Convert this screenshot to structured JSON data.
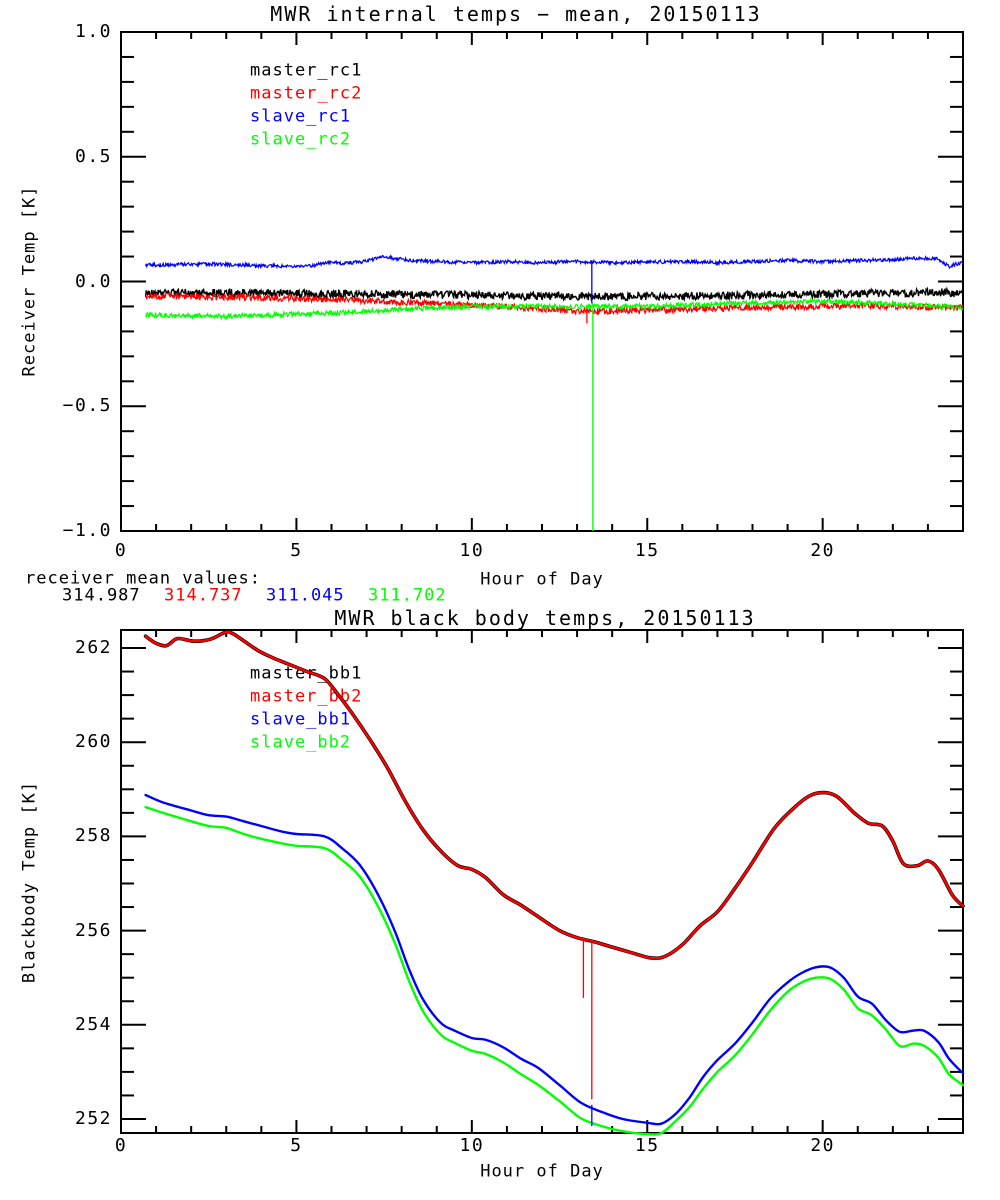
{
  "page": {
    "background": "#ffffff"
  },
  "colors": {
    "black": "#000000",
    "red": "#ff0000",
    "blue": "#0000ff",
    "green": "#00ff00"
  },
  "annotations": {
    "receiver_mean_label": "receiver mean values:",
    "receiver_means": [
      {
        "value": "314.987",
        "color": "black"
      },
      {
        "value": "314.737",
        "color": "red"
      },
      {
        "value": "311.045",
        "color": "blue"
      },
      {
        "value": "311.702",
        "color": "green"
      }
    ]
  },
  "chart_data": [
    {
      "type": "line",
      "title": "MWR internal temps − mean, 20150113",
      "xlabel": "Hour of Day",
      "ylabel": "Receiver Temp [K]",
      "xlim": [
        0,
        24
      ],
      "ylim": [
        -1.0,
        1.0
      ],
      "x_major_ticks": [
        0,
        5,
        10,
        15,
        20
      ],
      "x_tick_labels": [
        "0",
        "5",
        "10",
        "15",
        "20"
      ],
      "x_minor_step": 1,
      "y_major_ticks": [
        1.0,
        0.5,
        0.0,
        -0.5,
        -1.0
      ],
      "y_tick_labels": [
        "1.0",
        "0.5",
        "0.0",
        "−0.5",
        "−1.0"
      ],
      "y_minor_step": 0.1,
      "grid": false,
      "legend_position": "upper-left-inside",
      "legend": [
        {
          "label": "master_rc1",
          "color": "black"
        },
        {
          "label": "master_rc2",
          "color": "red"
        },
        {
          "label": "slave_rc1",
          "color": "blue"
        },
        {
          "label": "slave_rc2",
          "color": "green"
        }
      ],
      "series": [
        {
          "name": "master_rc1",
          "color": "black",
          "render": "noisy",
          "noise": 0.016,
          "width": 1.4,
          "x": [
            0.7,
            2,
            4,
            6,
            8,
            10,
            12,
            14,
            16,
            18,
            20,
            22,
            23.5,
            24
          ],
          "y": [
            -0.048,
            -0.045,
            -0.046,
            -0.05,
            -0.052,
            -0.055,
            -0.058,
            -0.06,
            -0.058,
            -0.055,
            -0.05,
            -0.046,
            -0.044,
            -0.05
          ]
        },
        {
          "name": "master_rc2",
          "color": "red",
          "render": "noisy",
          "noise": 0.013,
          "width": 1.2,
          "x": [
            0.7,
            2,
            4,
            6,
            8,
            10,
            11,
            12,
            13,
            13.5,
            14,
            15,
            16,
            18,
            20,
            21,
            22,
            23,
            24
          ],
          "y": [
            -0.058,
            -0.06,
            -0.065,
            -0.072,
            -0.082,
            -0.095,
            -0.1,
            -0.11,
            -0.118,
            -0.12,
            -0.118,
            -0.115,
            -0.112,
            -0.105,
            -0.1,
            -0.096,
            -0.1,
            -0.103,
            -0.105
          ]
        },
        {
          "name": "slave_rc1",
          "color": "blue",
          "render": "noisy",
          "noise": 0.007,
          "width": 1.2,
          "x": [
            0.7,
            1.5,
            2.5,
            3.5,
            4.5,
            5,
            5.5,
            6,
            6.3,
            6.8,
            7,
            7.5,
            7.8,
            8.2,
            9,
            10,
            11,
            12,
            13,
            14,
            15,
            16,
            17,
            18,
            19,
            20,
            21,
            22,
            22.8,
            23.3,
            23.6,
            23.8,
            24
          ],
          "y": [
            0.065,
            0.068,
            0.07,
            0.066,
            0.062,
            0.06,
            0.065,
            0.078,
            0.072,
            0.078,
            0.082,
            0.1,
            0.092,
            0.085,
            0.08,
            0.075,
            0.08,
            0.076,
            0.08,
            0.075,
            0.078,
            0.08,
            0.076,
            0.08,
            0.084,
            0.08,
            0.084,
            0.088,
            0.094,
            0.09,
            0.06,
            0.07,
            0.075
          ]
        },
        {
          "name": "slave_rc2",
          "color": "green",
          "render": "noisy",
          "noise": 0.01,
          "width": 1.2,
          "x": [
            0.7,
            2,
            3,
            4,
            5,
            6,
            7,
            8,
            9,
            10,
            12,
            14,
            16,
            17,
            18,
            19,
            20,
            21,
            22,
            23,
            24
          ],
          "y": [
            -0.133,
            -0.137,
            -0.14,
            -0.135,
            -0.13,
            -0.126,
            -0.12,
            -0.11,
            -0.105,
            -0.1,
            -0.1,
            -0.1,
            -0.096,
            -0.09,
            -0.086,
            -0.084,
            -0.08,
            -0.084,
            -0.09,
            -0.097,
            -0.105
          ]
        }
      ],
      "spikes": [
        {
          "series": "master_rc2",
          "color": "red",
          "x": 13.28,
          "from": -0.11,
          "to": -0.168
        },
        {
          "series": "slave_rc1",
          "color": "blue",
          "x": 13.42,
          "from": 0.075,
          "to": -0.088
        },
        {
          "series": "slave_rc2",
          "color": "green",
          "x": 13.45,
          "from": -0.1,
          "to": -1.0
        }
      ]
    },
    {
      "type": "line",
      "title": "MWR black body temps, 20150113",
      "xlabel": "Hour of Day",
      "ylabel": "Blackbody Temp [K]",
      "xlim": [
        0,
        24
      ],
      "ylim": [
        251.7,
        262.4
      ],
      "x_major_ticks": [
        0,
        5,
        10,
        15,
        20
      ],
      "x_tick_labels": [
        "0",
        "5",
        "10",
        "15",
        "20"
      ],
      "x_minor_step": 1,
      "y_major_ticks": [
        262,
        260,
        258,
        256,
        254,
        252
      ],
      "y_tick_labels": [
        "262",
        "260",
        "258",
        "256",
        "254",
        "252"
      ],
      "y_minor_step": 0.5,
      "grid": false,
      "legend_position": "upper-left-inside",
      "legend": [
        {
          "label": "master_bb1",
          "color": "black"
        },
        {
          "label": "master_bb2",
          "color": "red"
        },
        {
          "label": "slave_bb1",
          "color": "blue"
        },
        {
          "label": "slave_bb2",
          "color": "green"
        }
      ],
      "series": [
        {
          "name": "master_bb1",
          "color": "black",
          "render": "smooth",
          "width": 3.6,
          "x": [
            0.7,
            1.0,
            1.3,
            1.6,
            2.0,
            2.3,
            2.6,
            3.0,
            3.2,
            3.5,
            3.9,
            4.3,
            4.8,
            5.3,
            5.8,
            6.2,
            6.6,
            7.1,
            7.6,
            8.1,
            8.6,
            9.1,
            9.6,
            10.0,
            10.4,
            10.9,
            11.4,
            11.9,
            12.5,
            13.0,
            13.5,
            14.0,
            14.6,
            15.1,
            15.5,
            16.0,
            16.5,
            17.0,
            17.5,
            18.0,
            18.6,
            19.1,
            19.6,
            20.0,
            20.4,
            20.9,
            21.3,
            21.7,
            22.0,
            22.3,
            22.7,
            23.0,
            23.3,
            23.7,
            24.0
          ],
          "y": [
            262.25,
            262.1,
            262.05,
            262.2,
            262.15,
            262.15,
            262.2,
            262.34,
            262.3,
            262.15,
            261.95,
            261.8,
            261.65,
            261.5,
            261.35,
            261.0,
            260.6,
            260.05,
            259.45,
            258.75,
            258.15,
            257.7,
            257.38,
            257.3,
            257.12,
            256.76,
            256.54,
            256.29,
            256.0,
            255.85,
            255.76,
            255.65,
            255.52,
            255.42,
            255.45,
            255.7,
            256.1,
            256.4,
            256.9,
            257.45,
            258.15,
            258.55,
            258.85,
            258.93,
            258.85,
            258.5,
            258.28,
            258.22,
            257.9,
            257.42,
            257.38,
            257.48,
            257.3,
            256.75,
            256.52
          ]
        },
        {
          "name": "master_bb2",
          "color": "red",
          "render": "smooth",
          "width": 2.4,
          "x": [
            0.7,
            1.0,
            1.3,
            1.6,
            2.0,
            2.3,
            2.6,
            3.0,
            3.2,
            3.5,
            3.9,
            4.3,
            4.8,
            5.3,
            5.8,
            6.2,
            6.6,
            7.1,
            7.6,
            8.1,
            8.6,
            9.1,
            9.6,
            10.0,
            10.4,
            10.9,
            11.4,
            11.9,
            12.5,
            13.0,
            13.5,
            14.0,
            14.6,
            15.1,
            15.5,
            16.0,
            16.5,
            17.0,
            17.5,
            18.0,
            18.6,
            19.1,
            19.6,
            20.0,
            20.4,
            20.9,
            21.3,
            21.7,
            22.0,
            22.3,
            22.7,
            23.0,
            23.3,
            23.7,
            24.0
          ],
          "y": [
            262.25,
            262.1,
            262.05,
            262.2,
            262.15,
            262.15,
            262.2,
            262.34,
            262.3,
            262.15,
            261.95,
            261.8,
            261.65,
            261.5,
            261.35,
            261.0,
            260.6,
            260.05,
            259.45,
            258.75,
            258.15,
            257.7,
            257.38,
            257.3,
            257.12,
            256.76,
            256.54,
            256.29,
            256.0,
            255.85,
            255.76,
            255.65,
            255.52,
            255.42,
            255.45,
            255.7,
            256.1,
            256.4,
            256.9,
            257.45,
            258.15,
            258.55,
            258.85,
            258.93,
            258.85,
            258.5,
            258.28,
            258.22,
            257.9,
            257.42,
            257.38,
            257.48,
            257.3,
            256.75,
            256.52
          ]
        },
        {
          "name": "slave_bb1",
          "color": "blue",
          "render": "smooth",
          "width": 2.4,
          "x": [
            0.7,
            1.2,
            2.0,
            2.5,
            3.0,
            3.5,
            4.0,
            4.6,
            5.0,
            5.8,
            6.3,
            6.8,
            7.3,
            7.8,
            8.2,
            8.6,
            9.1,
            9.5,
            10.0,
            10.4,
            10.9,
            11.4,
            11.9,
            12.5,
            13.1,
            13.7,
            14.3,
            15.0,
            15.4,
            15.8,
            16.2,
            16.6,
            17.0,
            17.5,
            18.0,
            18.5,
            19.0,
            19.4,
            19.8,
            20.2,
            20.6,
            21.0,
            21.4,
            21.8,
            22.2,
            22.6,
            22.9,
            23.3,
            23.6,
            24.0
          ],
          "y": [
            258.88,
            258.72,
            258.55,
            258.45,
            258.42,
            258.32,
            258.22,
            258.1,
            258.05,
            258.0,
            257.75,
            257.4,
            256.8,
            256.0,
            255.2,
            254.55,
            254.05,
            253.88,
            253.72,
            253.68,
            253.52,
            253.28,
            253.08,
            252.72,
            252.35,
            252.15,
            252.0,
            251.92,
            251.9,
            252.1,
            252.45,
            252.9,
            253.25,
            253.6,
            254.05,
            254.55,
            254.9,
            255.1,
            255.22,
            255.22,
            255.0,
            254.6,
            254.45,
            254.1,
            253.85,
            253.88,
            253.87,
            253.63,
            253.28,
            252.97
          ]
        },
        {
          "name": "slave_bb2",
          "color": "green",
          "render": "smooth",
          "width": 2.4,
          "x": [
            0.7,
            1.2,
            2.0,
            2.5,
            3.0,
            3.5,
            4.0,
            4.6,
            5.0,
            5.8,
            6.3,
            6.8,
            7.3,
            7.8,
            8.2,
            8.6,
            9.1,
            9.5,
            10.0,
            10.4,
            10.9,
            11.4,
            11.9,
            12.5,
            13.1,
            13.7,
            14.3,
            15.0,
            15.4,
            15.8,
            16.2,
            16.6,
            17.0,
            17.5,
            18.0,
            18.5,
            19.0,
            19.4,
            19.8,
            20.2,
            20.6,
            21.0,
            21.4,
            21.8,
            22.2,
            22.6,
            22.9,
            23.3,
            23.6,
            24.0
          ],
          "y": [
            258.62,
            258.5,
            258.32,
            258.22,
            258.18,
            258.05,
            257.95,
            257.85,
            257.8,
            257.75,
            257.5,
            257.15,
            256.55,
            255.75,
            254.95,
            254.3,
            253.8,
            253.62,
            253.45,
            253.38,
            253.2,
            252.95,
            252.72,
            252.38,
            252.02,
            251.85,
            251.74,
            251.68,
            251.7,
            251.95,
            252.25,
            252.65,
            253.0,
            253.35,
            253.8,
            254.3,
            254.7,
            254.9,
            255.0,
            254.98,
            254.75,
            254.35,
            254.2,
            253.9,
            253.55,
            253.6,
            253.55,
            253.3,
            252.95,
            252.72
          ]
        }
      ],
      "spikes": [
        {
          "series": "master_bb2",
          "color": "red",
          "x": 13.18,
          "from": 255.8,
          "to": 254.57
        },
        {
          "series": "master_bb2",
          "color": "red",
          "x": 13.42,
          "from": 255.78,
          "to": 252.42
        },
        {
          "series": "slave_bb1",
          "color": "blue",
          "x": 13.42,
          "from": 252.3,
          "to": 251.85
        }
      ]
    }
  ]
}
